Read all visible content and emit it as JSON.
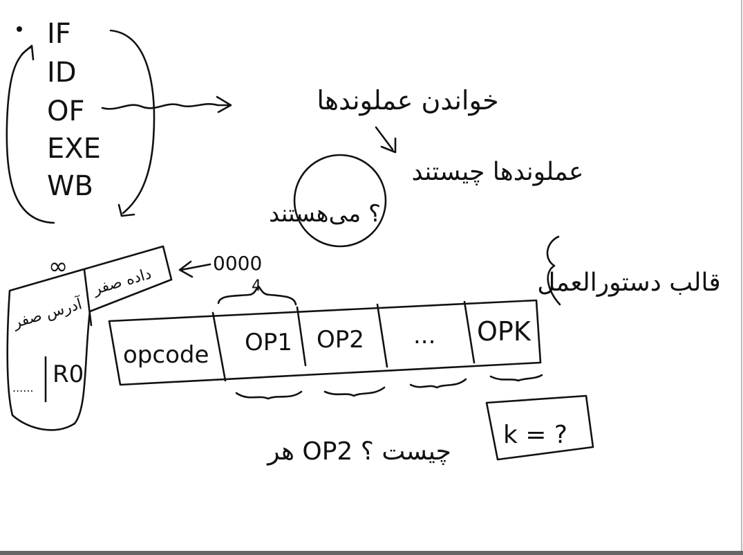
{
  "pipeline": {
    "stages": [
      "IF",
      "ID",
      "OF",
      "EXE",
      "WB"
    ]
  },
  "notes": {
    "read_operands": "خواندن عملوندها",
    "what_are_operands": "عملوندها چیستند",
    "what_are_operands_suffix": "؟ می‌هستند",
    "instruction_format": "قالب دستورالعمل",
    "each_op_what": "هر OP2 چیست ؟",
    "k_question": "k = ?"
  },
  "zero_bits": "0000",
  "four_label": "4",
  "infinity": "∞",
  "left_box": {
    "data_zero": "داده صفر",
    "address_zero": "آدرس صفر",
    "register": "R0",
    "dots": "......"
  },
  "instruction_fields": [
    "opcode",
    "OP1",
    "OP2",
    "...",
    "OPK"
  ]
}
